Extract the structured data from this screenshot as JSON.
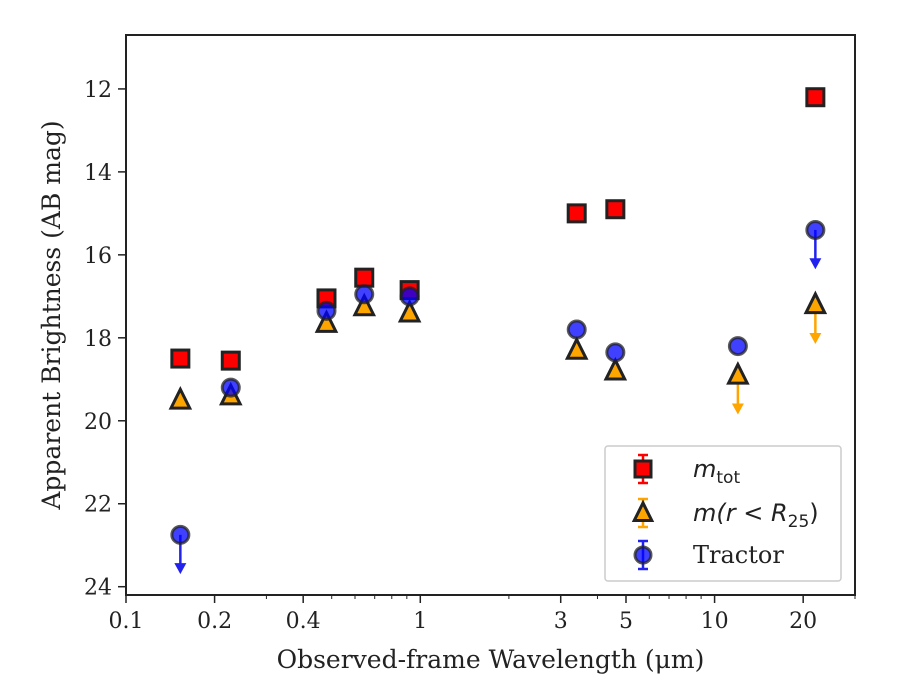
{
  "chart_data": {
    "type": "scatter",
    "title": "",
    "xlabel": "Observed-frame Wavelength (μm)",
    "ylabel": "Apparent Brightness (AB mag)",
    "xscale": "log",
    "xlim": [
      0.1,
      30
    ],
    "ylim": [
      24.2,
      10.7
    ],
    "y_inverted": true,
    "xticks": [
      {
        "value": 0.1,
        "label": "0.1"
      },
      {
        "value": 0.2,
        "label": "0.2"
      },
      {
        "value": 0.4,
        "label": "0.4"
      },
      {
        "value": 1,
        "label": "1"
      },
      {
        "value": 3,
        "label": "3"
      },
      {
        "value": 5,
        "label": "5"
      },
      {
        "value": 10,
        "label": "10"
      },
      {
        "value": 20,
        "label": "20"
      }
    ],
    "yticks": [
      {
        "value": 12,
        "label": "12"
      },
      {
        "value": 14,
        "label": "14"
      },
      {
        "value": 16,
        "label": "16"
      },
      {
        "value": 18,
        "label": "18"
      },
      {
        "value": 20,
        "label": "20"
      },
      {
        "value": 22,
        "label": "22"
      },
      {
        "value": 24,
        "label": "24"
      }
    ],
    "grid": false,
    "legend_position": "bottom-right",
    "series": [
      {
        "name": "m_tot",
        "marker": "square",
        "color": "#ff0000",
        "points": [
          {
            "x": 0.153,
            "y": 18.5
          },
          {
            "x": 0.227,
            "y": 18.55
          },
          {
            "x": 0.48,
            "y": 17.05
          },
          {
            "x": 0.645,
            "y": 16.55
          },
          {
            "x": 0.92,
            "y": 16.85
          },
          {
            "x": 3.4,
            "y": 15.0
          },
          {
            "x": 4.6,
            "y": 14.9
          },
          {
            "x": 22,
            "y": 12.2
          }
        ]
      },
      {
        "name": "m(r < R25)",
        "marker": "triangle",
        "color": "#ffa500",
        "points": [
          {
            "x": 0.153,
            "y": 19.5,
            "upper_limit": false
          },
          {
            "x": 0.227,
            "y": 19.4,
            "upper_limit": false
          },
          {
            "x": 0.48,
            "y": 17.65,
            "upper_limit": false
          },
          {
            "x": 0.645,
            "y": 17.25,
            "upper_limit": false
          },
          {
            "x": 0.92,
            "y": 17.4,
            "upper_limit": false
          },
          {
            "x": 3.4,
            "y": 18.3,
            "upper_limit": false
          },
          {
            "x": 4.6,
            "y": 18.8,
            "upper_limit": false
          },
          {
            "x": 12,
            "y": 18.9,
            "upper_limit": true,
            "limit_to": 19.8
          },
          {
            "x": 22,
            "y": 17.2,
            "upper_limit": true,
            "limit_to": 18.1
          }
        ]
      },
      {
        "name": "Tractor",
        "marker": "circle",
        "color": "#0000ff",
        "points": [
          {
            "x": 0.153,
            "y": 22.75,
            "upper_limit": true,
            "limit_to": 23.65
          },
          {
            "x": 0.227,
            "y": 19.2,
            "upper_limit": false
          },
          {
            "x": 0.48,
            "y": 17.35,
            "upper_limit": false
          },
          {
            "x": 0.645,
            "y": 16.95,
            "upper_limit": false
          },
          {
            "x": 0.92,
            "y": 17.0,
            "upper_limit": false
          },
          {
            "x": 3.4,
            "y": 17.8,
            "upper_limit": false
          },
          {
            "x": 4.6,
            "y": 18.35,
            "upper_limit": false
          },
          {
            "x": 12,
            "y": 18.2,
            "upper_limit": false
          },
          {
            "x": 22,
            "y": 15.4,
            "upper_limit": true,
            "limit_to": 16.3
          }
        ]
      }
    ],
    "legend": {
      "entries": [
        {
          "series": 0,
          "label_main": "m",
          "label_sub": "tot"
        },
        {
          "series": 1,
          "label_main": "m(r < R",
          "label_sub": "25",
          "label_tail": ")"
        },
        {
          "series": 2,
          "label_main": "Tractor"
        }
      ]
    }
  }
}
